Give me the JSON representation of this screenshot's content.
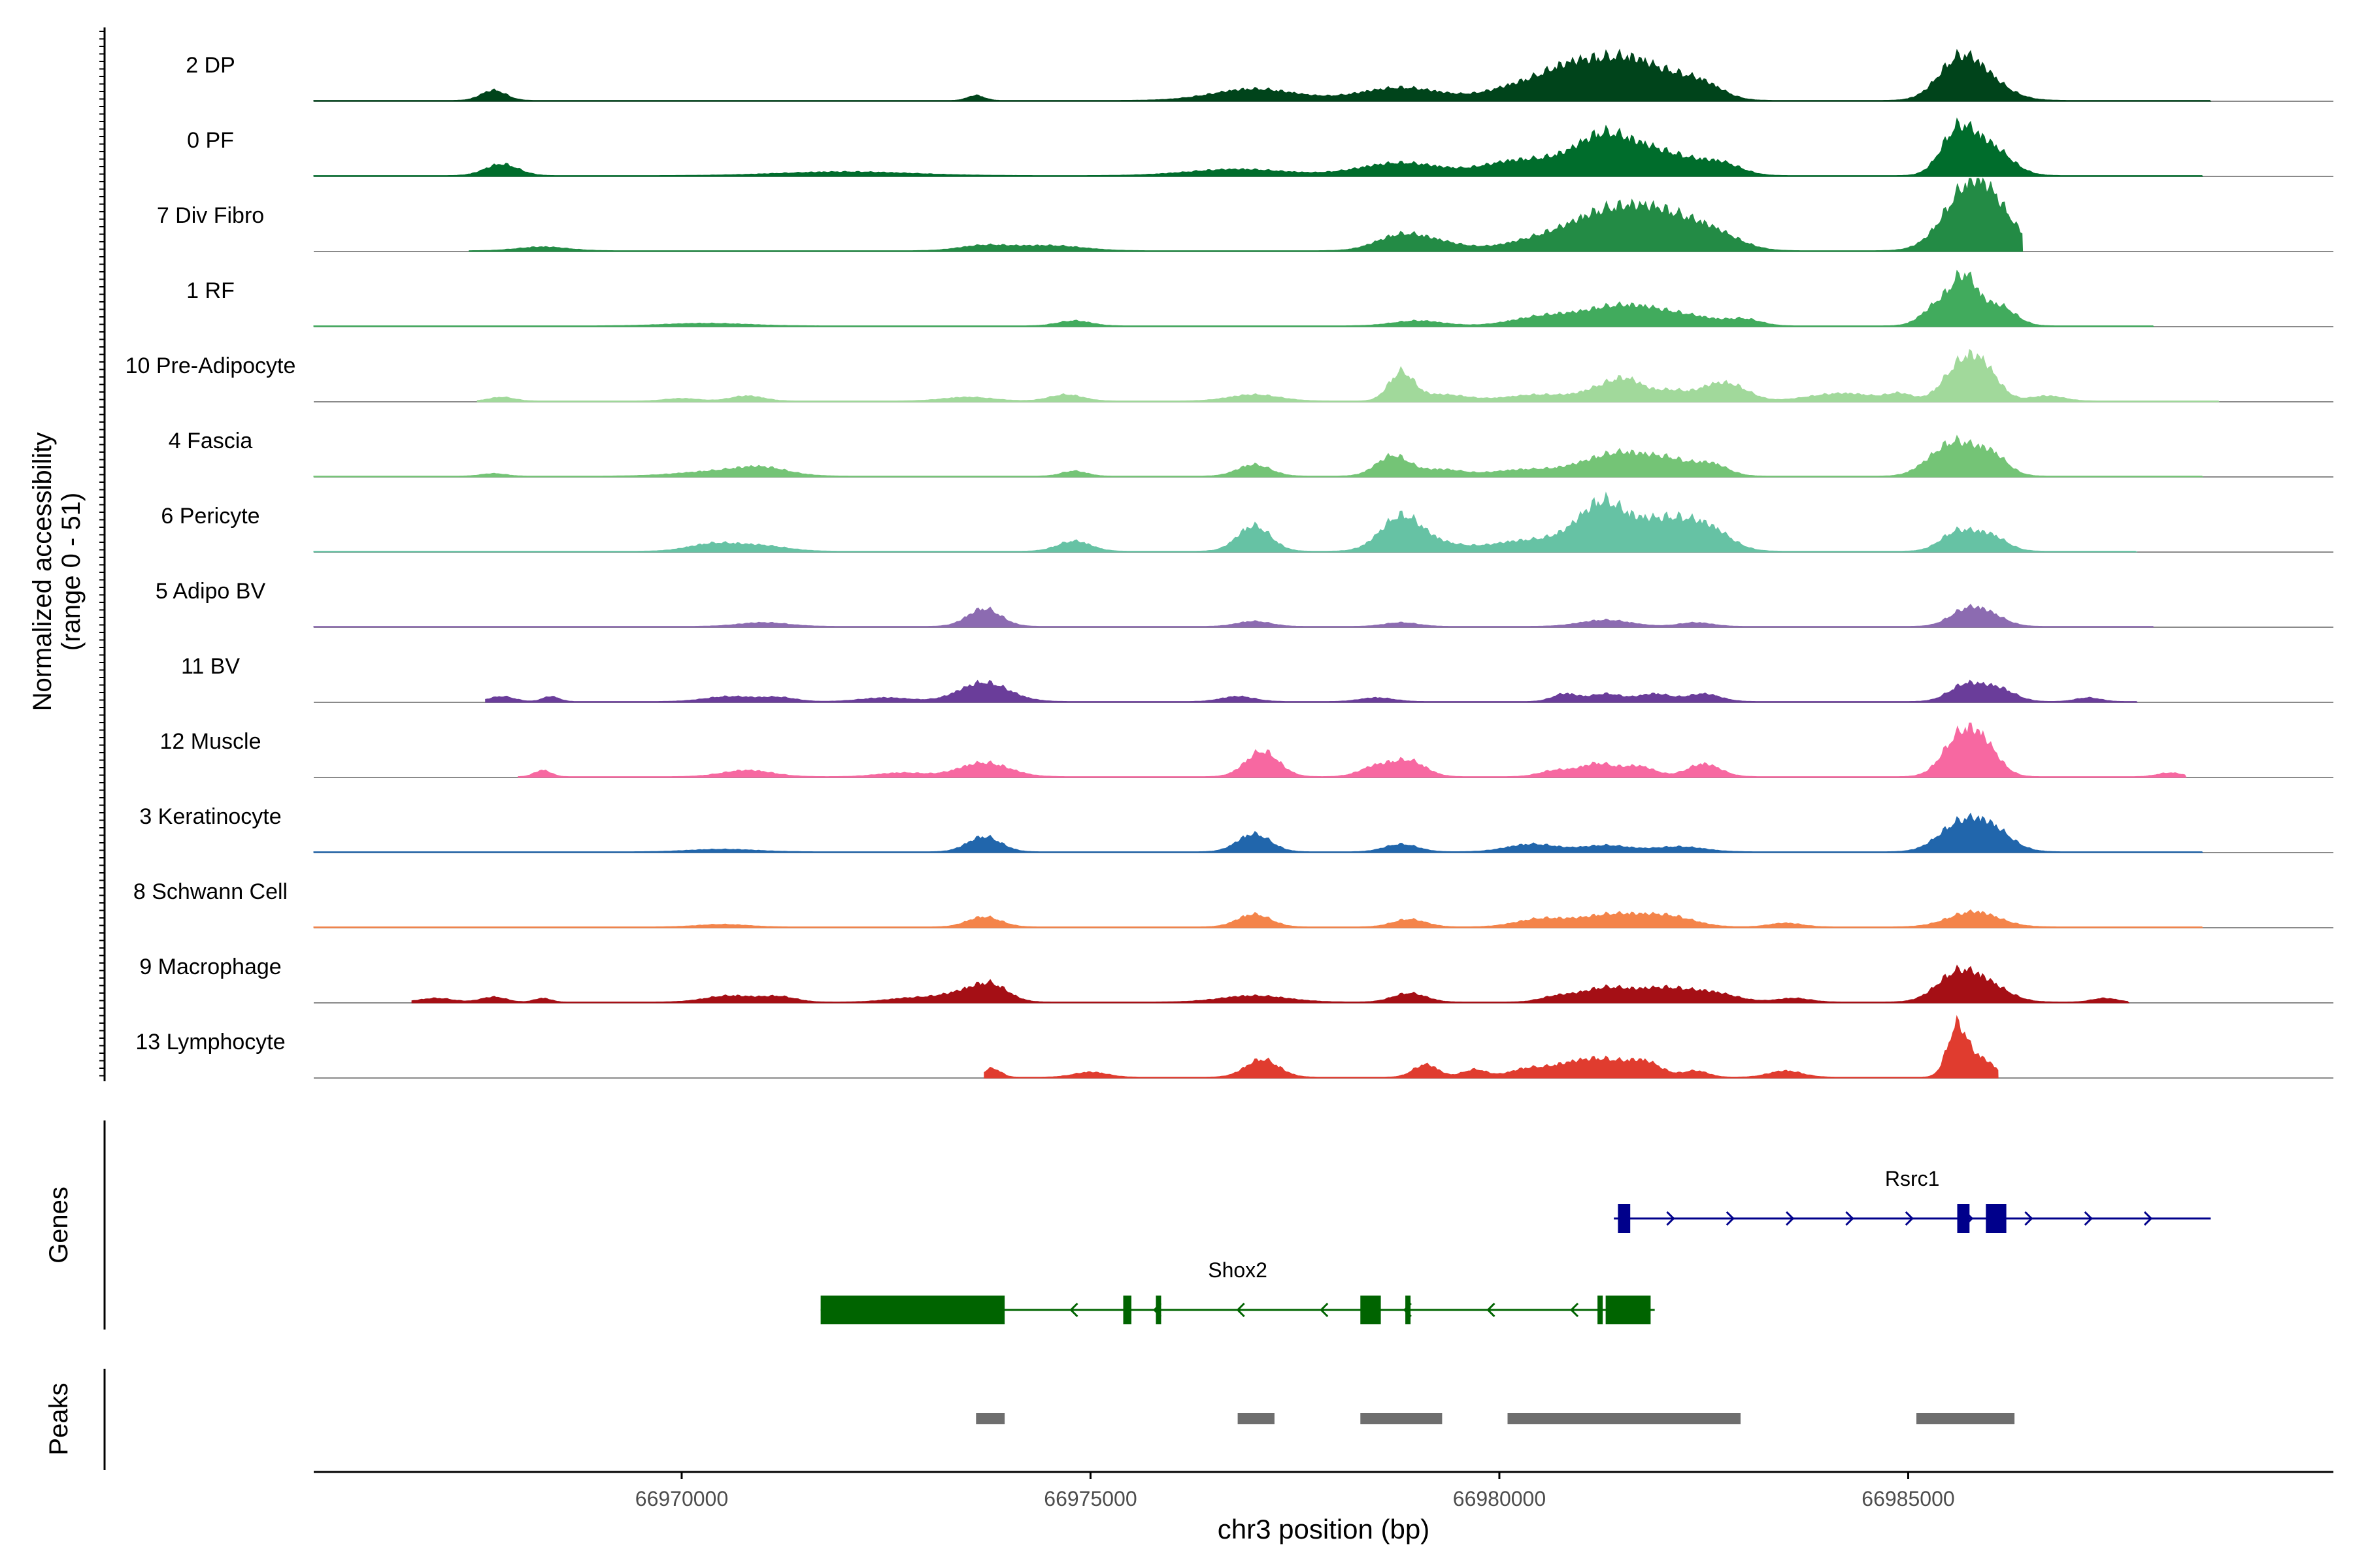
{
  "chart_data": {
    "type": "area",
    "description_free": true,
    "y_axis_title": [
      "Normalized accessibility",
      "(range 0 - 51)"
    ],
    "y_range": [
      0,
      51
    ],
    "x_axis_title": "chr3 position (bp)",
    "x_range": [
      66965500,
      66990200
    ],
    "x_ticks": [
      {
        "value": 66970000,
        "label": "66970000"
      },
      {
        "value": 66975000,
        "label": "66975000"
      },
      {
        "value": 66980000,
        "label": "66980000"
      },
      {
        "value": 66985000,
        "label": "66985000"
      }
    ],
    "tracks": [
      {
        "label": "2 DP",
        "color": "#00441b",
        "start": 66965500,
        "end": 66988700,
        "peaks": [
          [
            66967700,
            150,
            8
          ],
          [
            66973600,
            100,
            4
          ],
          [
            66977000,
            500,
            9
          ],
          [
            66978800,
            500,
            10
          ],
          [
            66980300,
            400,
            12
          ],
          [
            66980800,
            300,
            14
          ],
          [
            66981300,
            350,
            26
          ],
          [
            66981700,
            250,
            15
          ],
          [
            66982100,
            250,
            14
          ],
          [
            66982500,
            250,
            12
          ],
          [
            66985600,
            250,
            25
          ],
          [
            66985900,
            300,
            16
          ]
        ]
      },
      {
        "label": "0 PF",
        "color": "#006d2c",
        "start": 66965500,
        "end": 66988600,
        "peaks": [
          [
            66967800,
            200,
            9
          ],
          [
            66972000,
            800,
            3
          ],
          [
            66976800,
            600,
            5
          ],
          [
            66978800,
            500,
            10
          ],
          [
            66980200,
            400,
            11
          ],
          [
            66980800,
            300,
            8
          ],
          [
            66981300,
            300,
            30
          ],
          [
            66981800,
            250,
            14
          ],
          [
            66982200,
            250,
            11
          ],
          [
            66982700,
            250,
            10
          ],
          [
            66985600,
            200,
            33
          ],
          [
            66986000,
            250,
            22
          ]
        ]
      },
      {
        "label": "7 Div Fibro",
        "color": "#238b45",
        "start": 66967400,
        "end": 66986400,
        "peaks": [
          [
            66968300,
            300,
            3
          ],
          [
            66973700,
            300,
            4
          ],
          [
            66974500,
            400,
            4
          ],
          [
            66978800,
            300,
            12
          ],
          [
            66979300,
            300,
            5
          ],
          [
            66980700,
            500,
            12
          ],
          [
            66981400,
            400,
            26
          ],
          [
            66981900,
            300,
            16
          ],
          [
            66982300,
            300,
            14
          ],
          [
            66982700,
            300,
            10
          ],
          [
            66985700,
            300,
            36
          ],
          [
            66986000,
            300,
            28
          ]
        ]
      },
      {
        "label": "1 RF",
        "color": "#41ab5d",
        "start": 66965500,
        "end": 66988000,
        "peaks": [
          [
            66970300,
            500,
            2
          ],
          [
            66974800,
            200,
            4
          ],
          [
            66979000,
            300,
            4
          ],
          [
            66980600,
            400,
            8
          ],
          [
            66981400,
            350,
            13
          ],
          [
            66981900,
            300,
            8
          ],
          [
            66982400,
            300,
            6
          ],
          [
            66983000,
            200,
            5
          ],
          [
            66985400,
            200,
            18
          ],
          [
            66985700,
            150,
            33
          ],
          [
            66986100,
            200,
            16
          ]
        ]
      },
      {
        "label": "10 Pre-Adipocyte",
        "color": "#a1d99b",
        "start": 66967500,
        "end": 66988800,
        "peaks": [
          [
            66967800,
            150,
            3
          ],
          [
            66970000,
            200,
            2
          ],
          [
            66970800,
            200,
            4
          ],
          [
            66973500,
            300,
            3
          ],
          [
            66974700,
            200,
            5
          ],
          [
            66977000,
            300,
            5
          ],
          [
            66978800,
            150,
            22
          ],
          [
            66979300,
            300,
            5
          ],
          [
            66980500,
            400,
            5
          ],
          [
            66981300,
            250,
            10
          ],
          [
            66981600,
            200,
            12
          ],
          [
            66982100,
            200,
            8
          ],
          [
            66982600,
            200,
            10
          ],
          [
            66982900,
            200,
            9
          ],
          [
            66984200,
            400,
            6
          ],
          [
            66984900,
            150,
            5
          ],
          [
            66985600,
            200,
            22
          ],
          [
            66985900,
            200,
            26
          ],
          [
            66986700,
            200,
            4
          ]
        ]
      },
      {
        "label": "4 Fascia",
        "color": "#74c476",
        "start": 66965500,
        "end": 66988600,
        "peaks": [
          [
            66967700,
            150,
            2
          ],
          [
            66970500,
            500,
            4
          ],
          [
            66971000,
            300,
            5
          ],
          [
            66974800,
            150,
            4
          ],
          [
            66977000,
            200,
            9
          ],
          [
            66978700,
            200,
            16
          ],
          [
            66979300,
            250,
            5
          ],
          [
            66980300,
            400,
            5
          ],
          [
            66981200,
            350,
            10
          ],
          [
            66981600,
            300,
            12
          ],
          [
            66982100,
            250,
            11
          ],
          [
            66982600,
            200,
            9
          ],
          [
            66985300,
            200,
            10
          ],
          [
            66985600,
            200,
            22
          ],
          [
            66986000,
            200,
            18
          ]
        ]
      },
      {
        "label": "6 Pericyte",
        "color": "#66c2a4",
        "start": 66965500,
        "end": 66987800,
        "peaks": [
          [
            66970400,
            300,
            6
          ],
          [
            66971000,
            300,
            4
          ],
          [
            66974800,
            200,
            8
          ],
          [
            66977000,
            200,
            20
          ],
          [
            66978800,
            250,
            27
          ],
          [
            66979300,
            300,
            5
          ],
          [
            66980300,
            400,
            8
          ],
          [
            66981000,
            300,
            12
          ],
          [
            66981300,
            250,
            30
          ],
          [
            66981800,
            250,
            17
          ],
          [
            66982200,
            250,
            18
          ],
          [
            66982600,
            250,
            15
          ],
          [
            66985600,
            200,
            15
          ],
          [
            66986000,
            200,
            12
          ]
        ]
      },
      {
        "label": "5 Adipo BV",
        "color": "#8c6bb1",
        "start": 66965500,
        "end": 66988000,
        "peaks": [
          [
            66971000,
            300,
            3
          ],
          [
            66973700,
            200,
            14
          ],
          [
            66977000,
            200,
            4
          ],
          [
            66978800,
            200,
            3
          ],
          [
            66981300,
            300,
            5
          ],
          [
            66982400,
            200,
            3
          ],
          [
            66985700,
            200,
            12
          ],
          [
            66986000,
            200,
            8
          ]
        ]
      },
      {
        "label": "11 BV",
        "color": "#6a3d9a",
        "start": 66967600,
        "end": 66987800,
        "peaks": [
          [
            66967800,
            150,
            4
          ],
          [
            66968400,
            100,
            4
          ],
          [
            66970600,
            300,
            4
          ],
          [
            66971200,
            200,
            3
          ],
          [
            66972500,
            300,
            3
          ],
          [
            66973700,
            300,
            15
          ],
          [
            66976800,
            200,
            4
          ],
          [
            66978500,
            200,
            3
          ],
          [
            66980800,
            150,
            6
          ],
          [
            66981300,
            200,
            6
          ],
          [
            66981900,
            200,
            6
          ],
          [
            66982500,
            200,
            6
          ],
          [
            66985700,
            200,
            13
          ],
          [
            66986100,
            200,
            10
          ],
          [
            66987200,
            150,
            3
          ]
        ]
      },
      {
        "label": "12 Muscle",
        "color": "#f768a1",
        "start": 66968000,
        "end": 66988400,
        "peaks": [
          [
            66968300,
            100,
            5
          ],
          [
            66970800,
            300,
            5
          ],
          [
            66972700,
            300,
            3
          ],
          [
            66973700,
            300,
            11
          ],
          [
            66977100,
            200,
            20
          ],
          [
            66978500,
            200,
            8
          ],
          [
            66978900,
            200,
            12
          ],
          [
            66980700,
            200,
            5
          ],
          [
            66981200,
            200,
            10
          ],
          [
            66981700,
            200,
            8
          ],
          [
            66982500,
            200,
            10
          ],
          [
            66985600,
            200,
            26
          ],
          [
            66985900,
            200,
            25
          ],
          [
            66988200,
            150,
            3
          ]
        ]
      },
      {
        "label": "3 Keratinocyte",
        "color": "#2166ac",
        "start": 66965500,
        "end": 66988600,
        "peaks": [
          [
            66970500,
            400,
            2
          ],
          [
            66973700,
            200,
            12
          ],
          [
            66977000,
            200,
            14
          ],
          [
            66978800,
            200,
            6
          ],
          [
            66980400,
            300,
            6
          ],
          [
            66981300,
            300,
            5
          ],
          [
            66982200,
            300,
            4
          ],
          [
            66985600,
            250,
            19
          ],
          [
            66986000,
            250,
            18
          ]
        ]
      },
      {
        "label": "8 Schwann Cell",
        "color": "#f4844a",
        "start": 66965500,
        "end": 66988600,
        "peaks": [
          [
            66970500,
            300,
            2
          ],
          [
            66973700,
            200,
            8
          ],
          [
            66977000,
            200,
            10
          ],
          [
            66978900,
            200,
            6
          ],
          [
            66980500,
            300,
            6
          ],
          [
            66981400,
            400,
            10
          ],
          [
            66982100,
            300,
            7
          ],
          [
            66983500,
            200,
            3
          ],
          [
            66985800,
            300,
            12
          ]
        ]
      },
      {
        "label": "9 Macrophage",
        "color": "#a50f15",
        "start": 66966700,
        "end": 66987700,
        "peaks": [
          [
            66967000,
            200,
            3
          ],
          [
            66967700,
            150,
            4
          ],
          [
            66968300,
            100,
            3
          ],
          [
            66970600,
            300,
            5
          ],
          [
            66971200,
            200,
            4
          ],
          [
            66972800,
            300,
            3
          ],
          [
            66973500,
            300,
            8
          ],
          [
            66973800,
            200,
            10
          ],
          [
            66977000,
            400,
            5
          ],
          [
            66978900,
            200,
            7
          ],
          [
            66980700,
            200,
            4
          ],
          [
            66981300,
            300,
            11
          ],
          [
            66982000,
            300,
            10
          ],
          [
            66982600,
            300,
            7
          ],
          [
            66983600,
            200,
            3
          ],
          [
            66985600,
            250,
            22
          ],
          [
            66986000,
            250,
            11
          ],
          [
            66987400,
            150,
            3
          ]
        ]
      },
      {
        "label": "13 Lymphocyte",
        "color": "#e03c2f",
        "start": 66973700,
        "end": 66986100,
        "peaks": [
          [
            66973800,
            100,
            7
          ],
          [
            66975000,
            200,
            4
          ],
          [
            66977100,
            200,
            14
          ],
          [
            66979100,
            150,
            10
          ],
          [
            66979700,
            150,
            6
          ],
          [
            66980300,
            200,
            5
          ],
          [
            66980800,
            300,
            8
          ],
          [
            66981300,
            300,
            12
          ],
          [
            66981800,
            200,
            10
          ],
          [
            66982400,
            150,
            5
          ],
          [
            66983500,
            200,
            5
          ],
          [
            66985600,
            120,
            40
          ],
          [
            66985900,
            150,
            14
          ]
        ]
      }
    ],
    "genes": {
      "title": "Genes",
      "items": [
        {
          "name": "Rsrc1",
          "strand": "+",
          "color": "#00008b",
          "start": 66981400,
          "end": 66988700,
          "exons": [
            [
              66981450,
              66981600
            ],
            [
              66985600,
              66985750
            ],
            [
              66985950,
              66986200
            ]
          ]
        },
        {
          "name": "Shox2",
          "strand": "-",
          "color": "#006400",
          "start": 66971700,
          "end": 66981900,
          "exons": [
            [
              66971700,
              66973950
            ],
            [
              66975400,
              66975500
            ],
            [
              66975800,
              66975850
            ],
            [
              66978300,
              66978550
            ],
            [
              66978850,
              66978900
            ],
            [
              66981200,
              66981260
            ],
            [
              66981300,
              66981850
            ]
          ]
        }
      ]
    },
    "peaks": {
      "title": "Peaks",
      "regions": [
        [
          66973600,
          66973950
        ],
        [
          66976800,
          66977250
        ],
        [
          66978300,
          66979300
        ],
        [
          66980100,
          66982950
        ],
        [
          66985100,
          66986300
        ]
      ]
    }
  }
}
